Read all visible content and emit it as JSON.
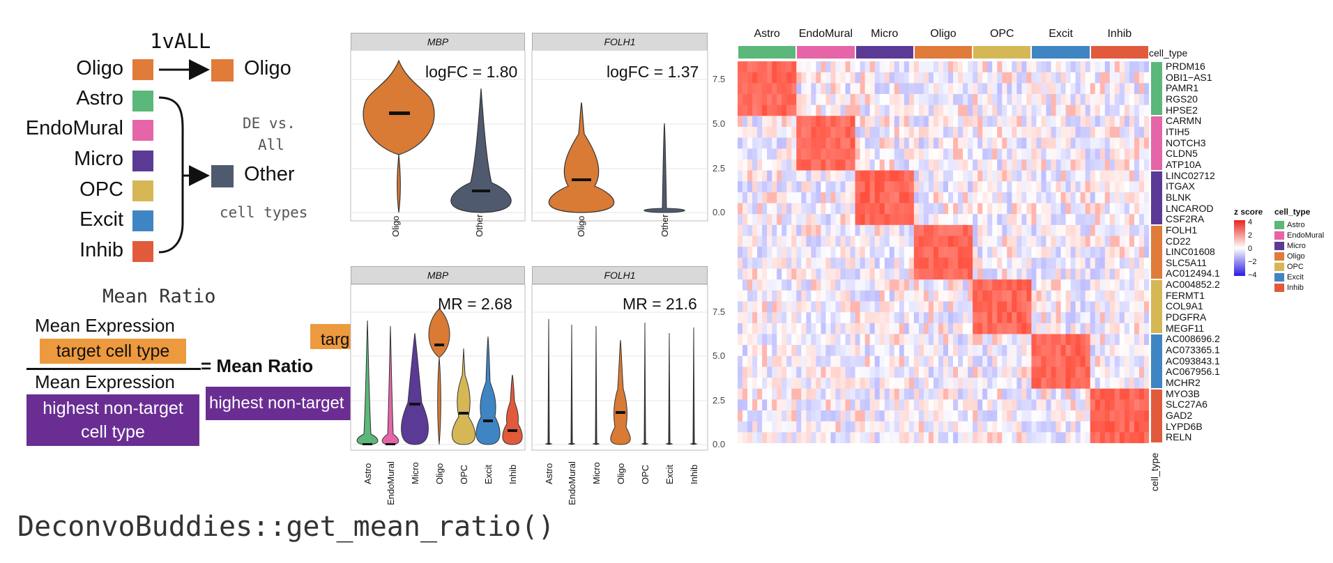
{
  "left": {
    "title": "1vALL",
    "cell_types": [
      {
        "name": "Oligo",
        "color": "#E07B39"
      },
      {
        "name": "Astro",
        "color": "#5BB77A"
      },
      {
        "name": "EndoMural",
        "color": "#E565A8"
      },
      {
        "name": "Micro",
        "color": "#5B3A96"
      },
      {
        "name": "OPC",
        "color": "#D5B855"
      },
      {
        "name": "Excit",
        "color": "#3F85C4"
      },
      {
        "name": "Inhib",
        "color": "#E15A3C"
      }
    ],
    "target_label": "Oligo",
    "other_label": "Other",
    "other_color": "#4F5A6E",
    "de_text_1": "DE vs.",
    "de_text_2": "All",
    "de_text_3": "cell types",
    "mean_ratio_title": "Mean Ratio",
    "numerator_line1": "Mean Expression",
    "numerator_box": "target cell type",
    "numerator_box_color": "#ED9A3E",
    "denominator_line1": "Mean Expression",
    "denominator_box_1": "highest non-target",
    "denominator_box_2": "cell type",
    "denominator_box_color": "#6A2E93",
    "equals_text": "= Mean Ratio",
    "arrow_target": "target",
    "arrow_nontarget": "highest non-target",
    "function_call": "DeconvoBuddies::get_mean_ratio()"
  },
  "violins": {
    "y_ticks": [
      "0.0",
      "2.5",
      "5.0",
      "7.5"
    ],
    "top": [
      {
        "gene": "MBP",
        "stat": "logFC = 1.80",
        "groups": [
          "Oligo",
          "Other"
        ]
      },
      {
        "gene": "FOLH1",
        "stat": "logFC = 1.37",
        "groups": [
          "Oligo",
          "Other"
        ]
      }
    ],
    "bottom": [
      {
        "gene": "MBP",
        "stat": "MR = 2.68"
      },
      {
        "gene": "FOLH1",
        "stat": "MR = 21.6"
      }
    ],
    "bottom_groups": [
      "Astro",
      "EndoMural",
      "Micro",
      "Oligo",
      "OPC",
      "Excit",
      "Inhib"
    ]
  },
  "heatmap": {
    "columns": [
      "Astro",
      "EndoMural",
      "Micro",
      "Oligo",
      "OPC",
      "Excit",
      "Inhib"
    ],
    "column_annotation_label": "cell_type",
    "row_annotation_label": "cell_type",
    "genes": [
      "PRDM16",
      "OBI1−AS1",
      "PAMR1",
      "RGS20",
      "HPSE2",
      "CARMN",
      "ITIH5",
      "NOTCH3",
      "CLDN5",
      "ATP10A",
      "LINC02712",
      "ITGAX",
      "BLNK",
      "LNCAROD",
      "CSF2RA",
      "FOLH1",
      "CD22",
      "LINC01608",
      "SLC5A11",
      "AC012494.1",
      "AC004852.2",
      "FERMT1",
      "COL9A1",
      "PDGFRA",
      "MEGF11",
      "AC008696.2",
      "AC073365.1",
      "AC093843.1",
      "AC067956.1",
      "MCHR2",
      "MYO3B",
      "SLC27A6",
      "GAD2",
      "LYPD6B",
      "RELN"
    ],
    "legend_z_title": "z score",
    "legend_z_ticks": [
      "4",
      "2",
      "0",
      "−2",
      "−4"
    ],
    "legend_ct_title": "cell_type"
  }
}
